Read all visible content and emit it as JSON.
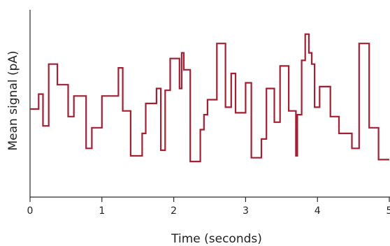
{
  "chart_data": {
    "type": "line",
    "interpolation": "step",
    "title": "",
    "xlabel": "Time (seconds)",
    "ylabel": "Mean signal (pA)",
    "xlim": [
      0,
      5
    ],
    "ylim": [
      0,
      100
    ],
    "x_ticks": [
      0,
      1,
      2,
      3,
      4,
      5
    ],
    "y_ticks": [],
    "y_tick_labels_shown": false,
    "grid": false,
    "legend": "none",
    "series_color": "#a31f34",
    "series": [
      {
        "x": [
          0,
          0.12,
          0.18,
          0.26,
          0.38,
          0.53,
          0.61,
          0.78,
          0.86,
          1.0,
          1.23,
          1.29,
          1.4,
          1.56,
          1.61,
          1.76,
          1.82,
          1.88,
          1.95,
          2.08,
          2.11,
          2.14,
          2.23,
          2.37,
          2.42,
          2.47,
          2.6,
          2.72,
          2.8,
          2.86,
          3.0,
          3.08,
          3.22,
          3.29,
          3.4,
          3.48,
          3.6,
          3.7,
          3.72,
          3.78,
          3.83,
          3.88,
          3.92,
          3.96,
          4.03,
          4.18,
          4.3,
          4.48,
          4.58,
          4.72,
          4.85,
          5.0
        ],
        "y": [
          47,
          55,
          38,
          71,
          60,
          43,
          54,
          26,
          37,
          54,
          69,
          46,
          22,
          34,
          50,
          58,
          25,
          57,
          74,
          58,
          77,
          68,
          19,
          36,
          44,
          52,
          82,
          48,
          66,
          45,
          61,
          21,
          31,
          58,
          40,
          70,
          46,
          22,
          44,
          73,
          87,
          77,
          71,
          48,
          59,
          43,
          34,
          26,
          82,
          37,
          20,
          20
        ]
      }
    ]
  }
}
